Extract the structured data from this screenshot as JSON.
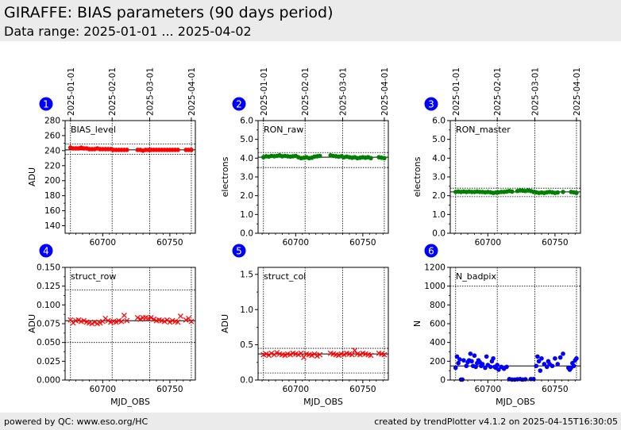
{
  "header": {
    "title": "GIRAFFE: BIAS parameters (90 days period)",
    "subtitle": "Data range: 2025-01-01 ... 2025-04-02"
  },
  "footer": {
    "left": "powered by QC: www.eso.org/HC",
    "right": "created by trendPlotter v4.1.2 on 2025-04-15T16:30:05"
  },
  "colors": {
    "red": "#ff0000",
    "green": "#008000",
    "blue": "#0000ff",
    "badge": "#0000ff",
    "header_bg": "#ebebeb"
  },
  "date_ticks": [
    {
      "label": "2025-01-01",
      "mjd": 60676
    },
    {
      "label": "2025-02-01",
      "mjd": 60707
    },
    {
      "label": "2025-03-01",
      "mjd": 60735
    },
    {
      "label": "2025-04-01",
      "mjd": 60766
    }
  ],
  "chart_data": [
    {
      "id": 1,
      "badge": "1",
      "type": "scatter",
      "panel_label": "BIAS_level",
      "ylabel": "ADU",
      "xlabel": "",
      "xlim": [
        60672,
        60769
      ],
      "ylim": [
        130,
        280
      ],
      "xticks": [
        60700,
        60750
      ],
      "yticks": [
        140,
        160,
        180,
        200,
        220,
        240,
        260,
        280
      ],
      "ytick_labels": [
        "140",
        "160",
        "180",
        "200",
        "220",
        "240",
        "260",
        "280"
      ],
      "ref_lines": {
        "solid": [
          241
        ],
        "dotted": [
          249,
          235
        ]
      },
      "marker": "dot",
      "color": "#ff0000",
      "x": [
        60676,
        60678,
        60680,
        60682,
        60684,
        60686,
        60688,
        60690,
        60692,
        60694,
        60696,
        60698,
        60700,
        60702,
        60704,
        60706,
        60708,
        60710,
        60712,
        60714,
        60716,
        60718,
        60726,
        60728,
        60730,
        60732,
        60734,
        60736,
        60738,
        60740,
        60742,
        60744,
        60746,
        60748,
        60750,
        60752,
        60754,
        60756,
        60762,
        60764,
        60766
      ],
      "y": [
        244,
        243,
        243,
        243,
        244,
        243,
        243,
        242,
        242,
        242,
        243,
        242,
        242,
        242,
        242,
        242,
        241,
        241,
        241,
        241,
        241,
        241,
        241,
        241,
        240,
        241,
        241,
        241,
        241,
        241,
        241,
        241,
        241,
        241,
        241,
        241,
        241,
        241,
        241,
        241,
        241
      ]
    },
    {
      "id": 2,
      "badge": "2",
      "type": "scatter",
      "panel_label": "RON_raw",
      "ylabel": "electrons",
      "xlabel": "",
      "xlim": [
        60672,
        60769
      ],
      "ylim": [
        0,
        6
      ],
      "xticks": [
        60700,
        60750
      ],
      "yticks": [
        0,
        1,
        2,
        3,
        4,
        5,
        6
      ],
      "ytick_labels": [
        "0.0",
        "1.0",
        "2.0",
        "3.0",
        "4.0",
        "5.0",
        "6.0"
      ],
      "ref_lines": {
        "solid": [
          4.05
        ],
        "dotted": [
          4.3,
          3.5
        ]
      },
      "marker": "dot",
      "color": "#008000",
      "x": [
        60676,
        60678,
        60680,
        60682,
        60684,
        60686,
        60688,
        60690,
        60692,
        60694,
        60696,
        60698,
        60700,
        60702,
        60704,
        60706,
        60708,
        60710,
        60712,
        60714,
        60716,
        60718,
        60726,
        60728,
        60730,
        60732,
        60734,
        60736,
        60738,
        60740,
        60742,
        60744,
        60746,
        60748,
        60750,
        60752,
        60754,
        60756,
        60762,
        60764,
        60766
      ],
      "y": [
        4.05,
        4.1,
        4.08,
        4.12,
        4.1,
        4.12,
        4.15,
        4.1,
        4.12,
        4.1,
        4.08,
        4.1,
        4.12,
        4.05,
        4.0,
        4.02,
        4.05,
        4.0,
        4.02,
        4.08,
        4.1,
        4.12,
        4.15,
        4.12,
        4.1,
        4.08,
        4.1,
        4.05,
        4.08,
        4.05,
        4.02,
        4.05,
        4.0,
        4.02,
        4.05,
        4.02,
        4.05,
        4.0,
        4.05,
        4.02,
        4.0
      ]
    },
    {
      "id": 3,
      "badge": "3",
      "type": "scatter",
      "panel_label": "RON_master",
      "ylabel": "electrons",
      "xlabel": "",
      "xlim": [
        60672,
        60769
      ],
      "ylim": [
        0,
        6
      ],
      "xticks": [
        60700,
        60750
      ],
      "yticks": [
        0,
        1,
        2,
        3,
        4,
        5,
        6
      ],
      "ytick_labels": [
        "0.0",
        "1.0",
        "2.0",
        "3.0",
        "4.0",
        "5.0",
        "6.0"
      ],
      "ref_lines": {
        "solid": [
          2.2
        ],
        "dotted": [
          2.4,
          1.95
        ]
      },
      "marker": "dot",
      "color": "#008000",
      "x": [
        60676,
        60678,
        60680,
        60682,
        60684,
        60686,
        60688,
        60690,
        60692,
        60694,
        60696,
        60698,
        60700,
        60702,
        60704,
        60706,
        60708,
        60710,
        60712,
        60714,
        60716,
        60718,
        60722,
        60724,
        60726,
        60728,
        60730,
        60732,
        60734,
        60736,
        60738,
        60740,
        60742,
        60744,
        60746,
        60748,
        60750,
        60752,
        60756,
        60762,
        60764,
        60766
      ],
      "y": [
        2.2,
        2.22,
        2.2,
        2.22,
        2.2,
        2.22,
        2.2,
        2.2,
        2.22,
        2.2,
        2.2,
        2.18,
        2.2,
        2.18,
        2.15,
        2.17,
        2.18,
        2.2,
        2.2,
        2.22,
        2.25,
        2.22,
        2.25,
        2.28,
        2.27,
        2.25,
        2.28,
        2.25,
        2.2,
        2.18,
        2.15,
        2.17,
        2.15,
        2.18,
        2.2,
        2.18,
        2.15,
        2.17,
        2.2,
        2.2,
        2.18,
        2.15
      ]
    },
    {
      "id": 4,
      "badge": "4",
      "type": "scatter",
      "panel_label": "struct_row",
      "ylabel": "ADU",
      "xlabel": "MJD_OBS",
      "xlim": [
        60672,
        60769
      ],
      "ylim": [
        0,
        0.15
      ],
      "xticks": [
        60700,
        60750
      ],
      "yticks": [
        0,
        0.025,
        0.05,
        0.075,
        0.1,
        0.125,
        0.15
      ],
      "ytick_labels": [
        "0.000",
        "0.025",
        "0.050",
        "0.075",
        "0.100",
        "0.125",
        "0.150"
      ],
      "ref_lines": {
        "solid": [
          0.079
        ],
        "dotted": [
          0.12,
          0.05
        ]
      },
      "marker": "x",
      "color": "#ff0000",
      "x": [
        60676,
        60678,
        60680,
        60682,
        60684,
        60686,
        60688,
        60690,
        60692,
        60694,
        60696,
        60698,
        60700,
        60702,
        60704,
        60706,
        60708,
        60710,
        60712,
        60714,
        60716,
        60718,
        60726,
        60728,
        60730,
        60732,
        60734,
        60736,
        60738,
        60740,
        60742,
        60744,
        60746,
        60748,
        60750,
        60752,
        60754,
        60756,
        60758,
        60762,
        60764,
        60766
      ],
      "y": [
        0.08,
        0.076,
        0.079,
        0.08,
        0.078,
        0.079,
        0.077,
        0.076,
        0.075,
        0.077,
        0.075,
        0.076,
        0.078,
        0.082,
        0.079,
        0.077,
        0.078,
        0.077,
        0.079,
        0.078,
        0.086,
        0.079,
        0.083,
        0.081,
        0.083,
        0.083,
        0.082,
        0.083,
        0.081,
        0.079,
        0.08,
        0.079,
        0.078,
        0.08,
        0.077,
        0.079,
        0.078,
        0.077,
        0.085,
        0.08,
        0.082,
        0.078
      ]
    },
    {
      "id": 5,
      "badge": "5",
      "type": "scatter",
      "panel_label": "struct_col",
      "ylabel": "ADU",
      "xlabel": "MJD_OBS",
      "xlim": [
        60672,
        60769
      ],
      "ylim": [
        0,
        1.6
      ],
      "xticks": [
        60700,
        60750
      ],
      "yticks": [
        0,
        0.5,
        1.0,
        1.5
      ],
      "ytick_labels": [
        "0.0",
        "0.5",
        "1.0",
        "1.5"
      ],
      "ref_lines": {
        "solid": [
          0.37
        ],
        "dotted": [
          0.45,
          0.1
        ]
      },
      "marker": "x",
      "color": "#ff0000",
      "x": [
        60676,
        60678,
        60680,
        60682,
        60684,
        60686,
        60688,
        60690,
        60692,
        60694,
        60696,
        60698,
        60700,
        60702,
        60704,
        60706,
        60708,
        60710,
        60712,
        60714,
        60716,
        60718,
        60726,
        60728,
        60730,
        60732,
        60734,
        60736,
        60738,
        60740,
        60742,
        60744,
        60746,
        60748,
        60750,
        60752,
        60754,
        60756,
        60762,
        60764,
        60766
      ],
      "y": [
        0.36,
        0.37,
        0.35,
        0.38,
        0.36,
        0.39,
        0.37,
        0.36,
        0.35,
        0.37,
        0.36,
        0.38,
        0.37,
        0.36,
        0.38,
        0.32,
        0.37,
        0.36,
        0.35,
        0.37,
        0.34,
        0.36,
        0.38,
        0.37,
        0.36,
        0.35,
        0.37,
        0.36,
        0.38,
        0.37,
        0.36,
        0.42,
        0.37,
        0.36,
        0.38,
        0.37,
        0.36,
        0.35,
        0.38,
        0.37,
        0.36
      ]
    },
    {
      "id": 6,
      "badge": "6",
      "type": "scatter",
      "panel_label": "N_badpix",
      "ylabel": "N",
      "xlabel": "MJD_OBS",
      "xlim": [
        60672,
        60769
      ],
      "ylim": [
        0,
        1200
      ],
      "xticks": [
        60700,
        60750
      ],
      "yticks": [
        0,
        200,
        400,
        600,
        800,
        1000,
        1200
      ],
      "ytick_labels": [
        "0",
        "200",
        "400",
        "600",
        "800",
        "1000",
        "1200"
      ],
      "ref_lines": {
        "solid": [
          150
        ],
        "dotted": [
          1000
        ]
      },
      "marker": "dot",
      "color": "#0000ff",
      "x": [
        60676,
        60677,
        60678,
        60679,
        60680,
        60681,
        60682,
        60684,
        60685,
        60686,
        60687,
        60688,
        60689,
        60690,
        60691,
        60692,
        60693,
        60694,
        60695,
        60696,
        60698,
        60699,
        60700,
        60702,
        60703,
        60704,
        60705,
        60706,
        60707,
        60708,
        60710,
        60712,
        60714,
        60716,
        60718,
        60720,
        60722,
        60724,
        60726,
        60728,
        60732,
        60734,
        60736,
        60737,
        60738,
        60739,
        60740,
        60742,
        60744,
        60745,
        60746,
        60748,
        60750,
        60752,
        60754,
        60756,
        60760,
        60761,
        60762,
        60763,
        60764,
        60765,
        60766
      ],
      "y": [
        130,
        250,
        180,
        220,
        5,
        5,
        210,
        150,
        190,
        210,
        280,
        200,
        150,
        260,
        140,
        180,
        210,
        190,
        150,
        170,
        130,
        250,
        160,
        140,
        200,
        230,
        140,
        130,
        160,
        110,
        140,
        120,
        140,
        10,
        5,
        5,
        8,
        10,
        5,
        8,
        10,
        10,
        150,
        250,
        200,
        100,
        230,
        170,
        140,
        200,
        170,
        150,
        230,
        170,
        240,
        280,
        130,
        110,
        130,
        180,
        150,
        210,
        230
      ]
    }
  ]
}
